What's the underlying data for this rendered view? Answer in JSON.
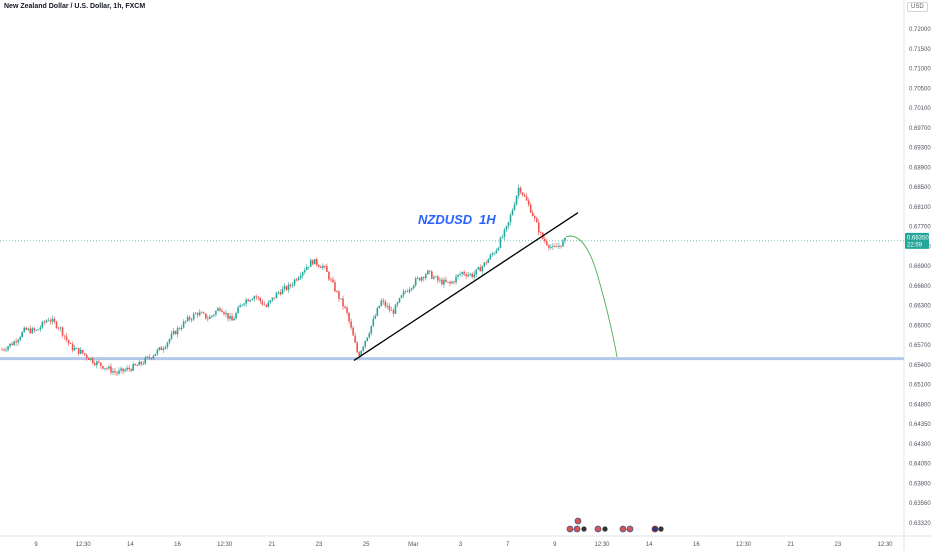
{
  "header": {
    "title": "New Zealand Dollar / U.S. Dollar, 1h, FXCM"
  },
  "scale": {
    "currency": "USD"
  },
  "colors": {
    "up": "#26a69a",
    "down": "#ef5350",
    "trendline": "#000000",
    "support": "#b2c8ea",
    "projection": "#4caf50",
    "current_price_bg": "#26a69a",
    "annotation": "#2962ff"
  },
  "chart_data": {
    "type": "candlestick",
    "annotation": {
      "symbol": "NZDUSD",
      "timeframe": "1H"
    },
    "y_axis": {
      "ticks": [
        "0.72000",
        "0.71500",
        "0.71000",
        "0.70500",
        "0.70100",
        "0.69700",
        "0.69300",
        "0.68900",
        "0.68500",
        "0.68100",
        "0.67700",
        "0.67300",
        "0.66900",
        "0.66600",
        "0.66300",
        "0.66000",
        "0.65700",
        "0.65400",
        "0.65100",
        "0.64800",
        "0.64350",
        "0.64300",
        "0.64050",
        "0.63800",
        "0.63560",
        "0.63320"
      ],
      "ylim": [
        0.6332,
        0.724
      ]
    },
    "x_axis": {
      "ticks": [
        "9",
        "12:30",
        "14",
        "16",
        "12:30",
        "21",
        "23",
        "25",
        "Mar",
        "3",
        "7",
        "9",
        "12:30",
        "14",
        "16",
        "12:30",
        "21",
        "23",
        "12:30"
      ]
    },
    "current_price": {
      "value": "0.68350",
      "countdown": "22:59"
    },
    "support_level": 0.663,
    "trendline": {
      "from": 0.6627,
      "to": 0.6884
    },
    "projection": {
      "start": 0.6842,
      "end": 0.6633
    },
    "anchors": [
      0.6646,
      0.6658,
      0.668,
      0.6678,
      0.67,
      0.6685,
      0.665,
      0.664,
      0.6625,
      0.6615,
      0.6605,
      0.6612,
      0.662,
      0.6635,
      0.665,
      0.6675,
      0.6695,
      0.671,
      0.67,
      0.672,
      0.6695,
      0.673,
      0.674,
      0.672,
      0.6745,
      0.6755,
      0.678,
      0.68,
      0.679,
      0.675,
      0.671,
      0.6635,
      0.668,
      0.673,
      0.671,
      0.6745,
      0.6765,
      0.678,
      0.6765,
      0.676,
      0.678,
      0.6775,
      0.6795,
      0.682,
      0.686,
      0.693,
      0.689,
      0.684,
      0.682,
      0.6835
    ]
  }
}
